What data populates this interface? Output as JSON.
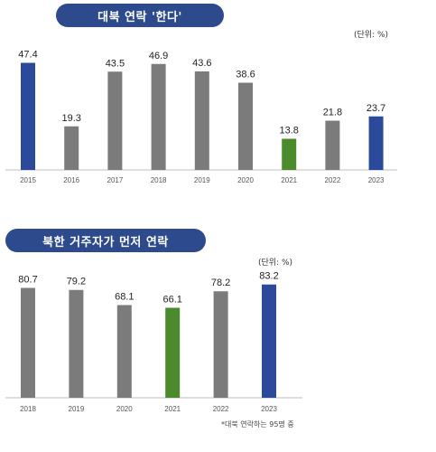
{
  "chart_data": [
    {
      "type": "bar",
      "title": "대북 연락 '한다'",
      "unit": "(단위: %)",
      "categories": [
        "2015",
        "2016",
        "2017",
        "2018",
        "2019",
        "2020",
        "2021",
        "2022",
        "2023"
      ],
      "values": [
        47.4,
        19.3,
        43.5,
        46.9,
        43.6,
        38.6,
        13.8,
        21.8,
        23.7
      ],
      "colors": [
        "#2b4a9b",
        "#7b7b7b",
        "#7b7b7b",
        "#7b7b7b",
        "#7b7b7b",
        "#7b7b7b",
        "#4b8b2e",
        "#7b7b7b",
        "#2b4a9b"
      ],
      "ylim": [
        0,
        50
      ]
    },
    {
      "type": "bar",
      "title": "북한 거주자가 먼저 연락",
      "unit": "(단위: %)",
      "note": "*대북 연락하는 95명 중",
      "categories": [
        "2018",
        "2019",
        "2020",
        "2021",
        "2022",
        "2023"
      ],
      "values": [
        80.7,
        79.2,
        68.1,
        66.1,
        78.2,
        83.2
      ],
      "colors": [
        "#7b7b7b",
        "#7b7b7b",
        "#7b7b7b",
        "#4b8b2e",
        "#7b7b7b",
        "#2b4a9b"
      ],
      "ylim": [
        0,
        85
      ]
    }
  ]
}
